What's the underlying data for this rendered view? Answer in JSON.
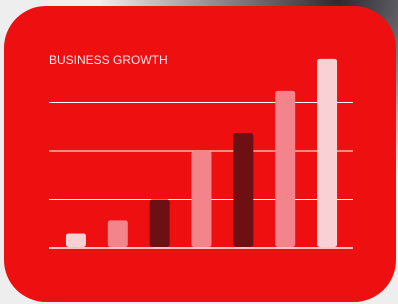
{
  "chart_data": {
    "type": "bar",
    "title": "BUSINESS GROWTH",
    "categories": [
      null,
      null,
      null,
      null,
      null,
      null,
      null
    ],
    "values": [
      0.3,
      0.57,
      1.0,
      2.0,
      2.37,
      3.24,
      3.9
    ],
    "colors": [
      "#f9d0d3",
      "#f3848b",
      "#6e0f14",
      "#f3848b",
      "#6e0f14",
      "#f3848b",
      "#f9d0d3"
    ],
    "ylim": [
      0,
      4
    ],
    "yticks": [
      0,
      1,
      2,
      3
    ],
    "grid": true
  }
}
